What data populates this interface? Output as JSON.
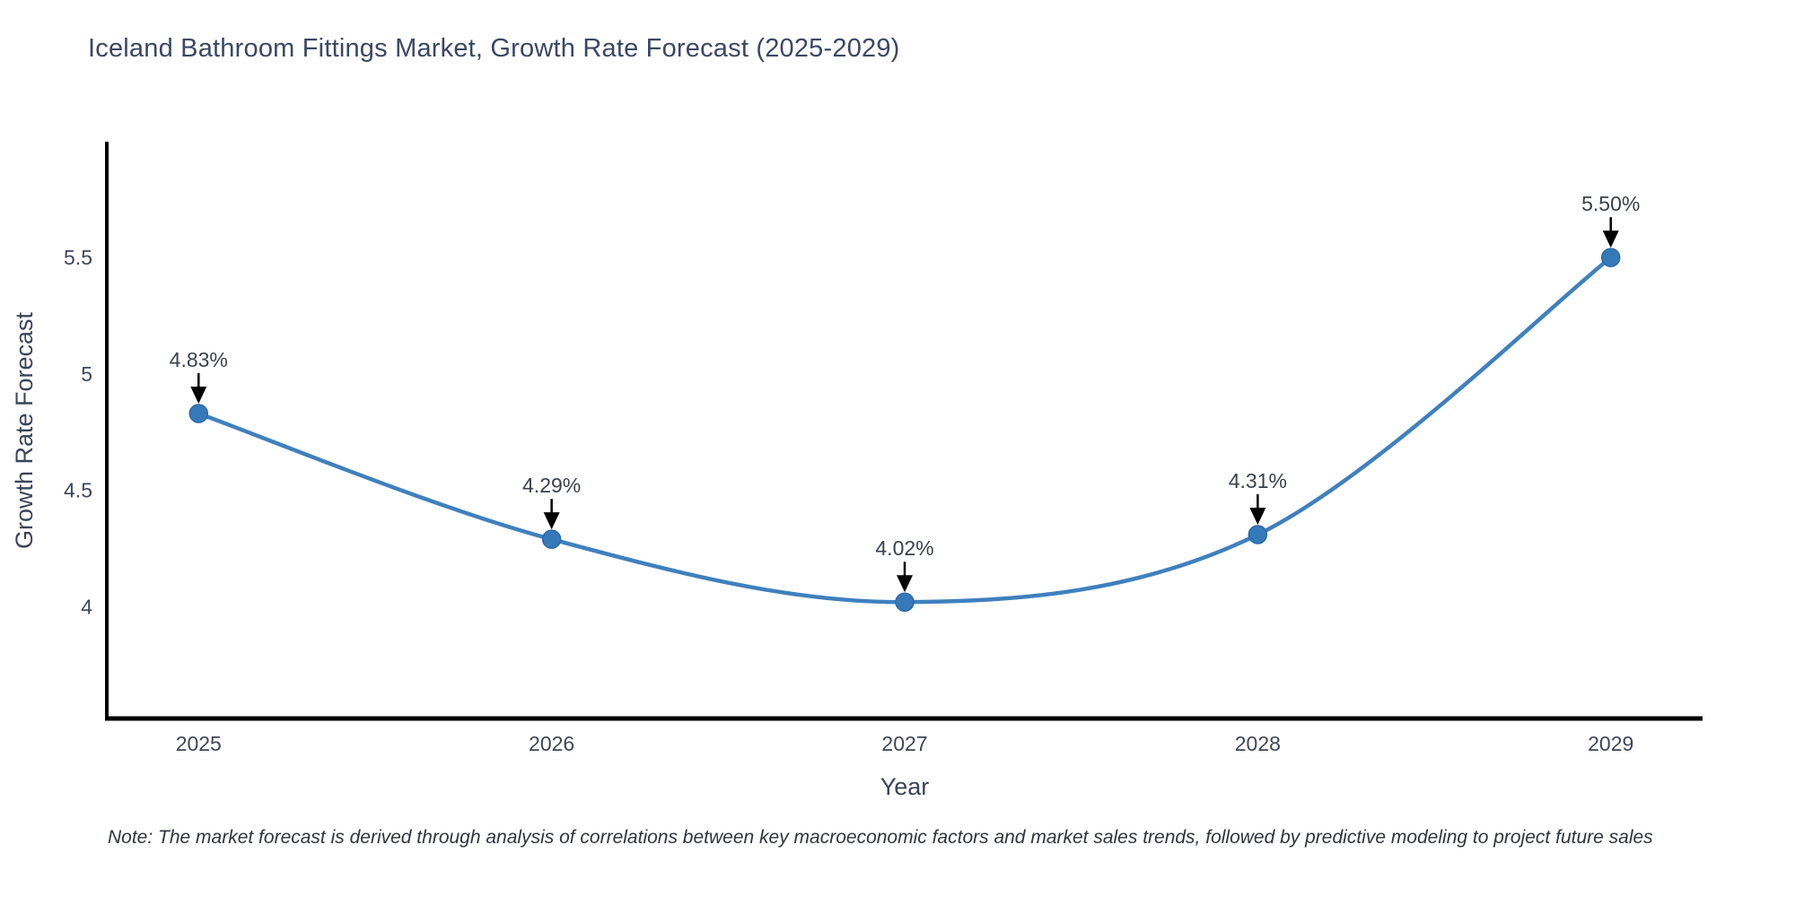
{
  "title": {
    "text": "Iceland Bathroom Fittings Market, Growth Rate Forecast (2025-2029)"
  },
  "chart_data": {
    "type": "line",
    "title": "Iceland Bathroom Fittings Market, Growth Rate Forecast (2025-2029)",
    "x": [
      2025,
      2026,
      2027,
      2028,
      2029
    ],
    "xtick_labels": [
      "2025",
      "2026",
      "2027",
      "2028",
      "2029"
    ],
    "series": [
      {
        "name": "Growth Rate Forecast",
        "values": [
          4.83,
          4.29,
          4.02,
          4.31,
          5.5
        ]
      }
    ],
    "point_labels": [
      "4.83%",
      "4.29%",
      "4.02%",
      "4.31%",
      "5.50%"
    ],
    "xlabel": "Year",
    "ylabel": "Growth Rate Forecast",
    "yticks": [
      4,
      4.5,
      5,
      5.5
    ],
    "ytick_labels": [
      "4",
      "4.5",
      "5",
      "5.5"
    ],
    "xlim": [
      2024.74,
      2029.26
    ],
    "ylim": [
      3.52,
      5.99
    ],
    "grid": false,
    "legend": false,
    "line_shape": "spline",
    "annotation_style": "down-arrow",
    "colors": {
      "line": "#3f80be",
      "marker": "#3579b8",
      "marker_edge": "#2d6aa6",
      "arrow": "#000000",
      "axis": "#000000",
      "tick_text": "#3e4758",
      "title_text": "#3b4764"
    }
  },
  "note": {
    "text": "Note: The market forecast is derived through analysis of correlations between key macroeconomic factors and market sales trends, followed by predictive modeling to project future sales"
  }
}
